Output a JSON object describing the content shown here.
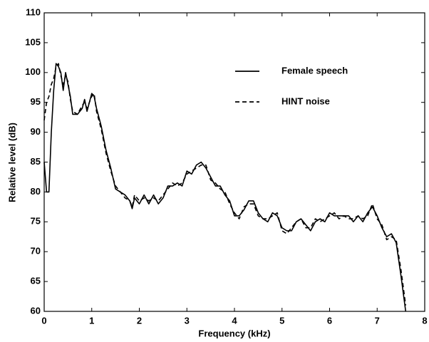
{
  "chart_data": {
    "type": "line",
    "xlabel": "Frequency (kHz)",
    "ylabel": "Relative level (dB)",
    "x": [
      0,
      0.05,
      0.1,
      0.15,
      0.2,
      0.25,
      0.3,
      0.35,
      0.4,
      0.45,
      0.5,
      0.55,
      0.6,
      0.7,
      0.8,
      0.85,
      0.9,
      1.0,
      1.05,
      1.1,
      1.2,
      1.3,
      1.4,
      1.5,
      1.6,
      1.7,
      1.8,
      1.85,
      1.9,
      2.0,
      2.1,
      2.2,
      2.3,
      2.4,
      2.5,
      2.6,
      2.7,
      2.8,
      2.9,
      3.0,
      3.1,
      3.2,
      3.3,
      3.4,
      3.5,
      3.6,
      3.7,
      3.8,
      3.9,
      4.0,
      4.1,
      4.2,
      4.3,
      4.4,
      4.5,
      4.6,
      4.7,
      4.8,
      4.9,
      5.0,
      5.1,
      5.2,
      5.3,
      5.4,
      5.5,
      5.6,
      5.7,
      5.8,
      5.9,
      6.0,
      6.1,
      6.2,
      6.3,
      6.4,
      6.5,
      6.6,
      6.7,
      6.8,
      6.9,
      7.0,
      7.1,
      7.2,
      7.3,
      7.4,
      7.5,
      7.6
    ],
    "series": [
      {
        "name": "Female speech",
        "color": "#000000",
        "linestyle": "solid",
        "values": [
          85,
          80,
          80,
          90,
          97,
          101.5,
          101,
          100,
          97,
          100,
          98,
          96,
          93,
          93,
          94,
          95.5,
          93.5,
          96.5,
          96,
          94,
          91,
          87,
          84,
          80.5,
          80,
          79.5,
          78.5,
          77.2,
          79,
          78,
          79.5,
          78,
          79.5,
          78,
          79,
          81,
          81,
          81.5,
          81,
          83.5,
          83,
          84.5,
          85,
          84,
          82.5,
          81,
          81,
          79.5,
          78.5,
          76,
          76,
          77,
          78.5,
          78.5,
          76.5,
          75.5,
          75,
          76.5,
          76,
          74,
          73.5,
          73.5,
          75,
          75.5,
          74.5,
          73.5,
          75,
          75.5,
          75,
          76.5,
          76,
          76,
          76,
          76,
          75,
          76,
          75,
          76.5,
          77.5,
          76,
          74,
          72.5,
          73,
          71.5,
          66,
          60
        ]
      },
      {
        "name": "HINT noise",
        "color": "#000000",
        "linestyle": "dashed",
        "values": [
          92,
          95,
          96,
          98,
          99,
          101,
          101.5,
          99.5,
          98,
          99.5,
          98.5,
          95.5,
          93.5,
          93,
          94.5,
          95,
          94,
          96,
          96.5,
          93.5,
          90.5,
          86.5,
          83.5,
          81,
          80,
          79,
          78.5,
          77.5,
          79.5,
          78.5,
          79,
          78.5,
          79,
          78.5,
          79.5,
          80.5,
          81.5,
          81,
          81.5,
          83,
          83.5,
          84,
          84.5,
          84.5,
          82,
          81.5,
          80.5,
          80,
          78,
          76.5,
          75.5,
          77.5,
          78,
          78,
          76,
          75.5,
          75.5,
          76,
          76.5,
          73.5,
          73,
          74,
          75,
          75.5,
          74,
          74,
          75.5,
          75,
          75.5,
          76,
          76.5,
          75.5,
          76,
          75.5,
          75.5,
          76,
          75.5,
          76,
          78,
          75.5,
          74.5,
          72,
          72.5,
          72,
          67,
          61
        ]
      }
    ],
    "xlim": [
      0,
      8
    ],
    "xticks": [
      0,
      1,
      2,
      3,
      4,
      5,
      6,
      7,
      8
    ],
    "ylim": [
      60,
      110
    ],
    "yticks": [
      60,
      65,
      70,
      75,
      80,
      85,
      90,
      95,
      100,
      105,
      110
    ],
    "grid": false,
    "legend": "upper right"
  }
}
